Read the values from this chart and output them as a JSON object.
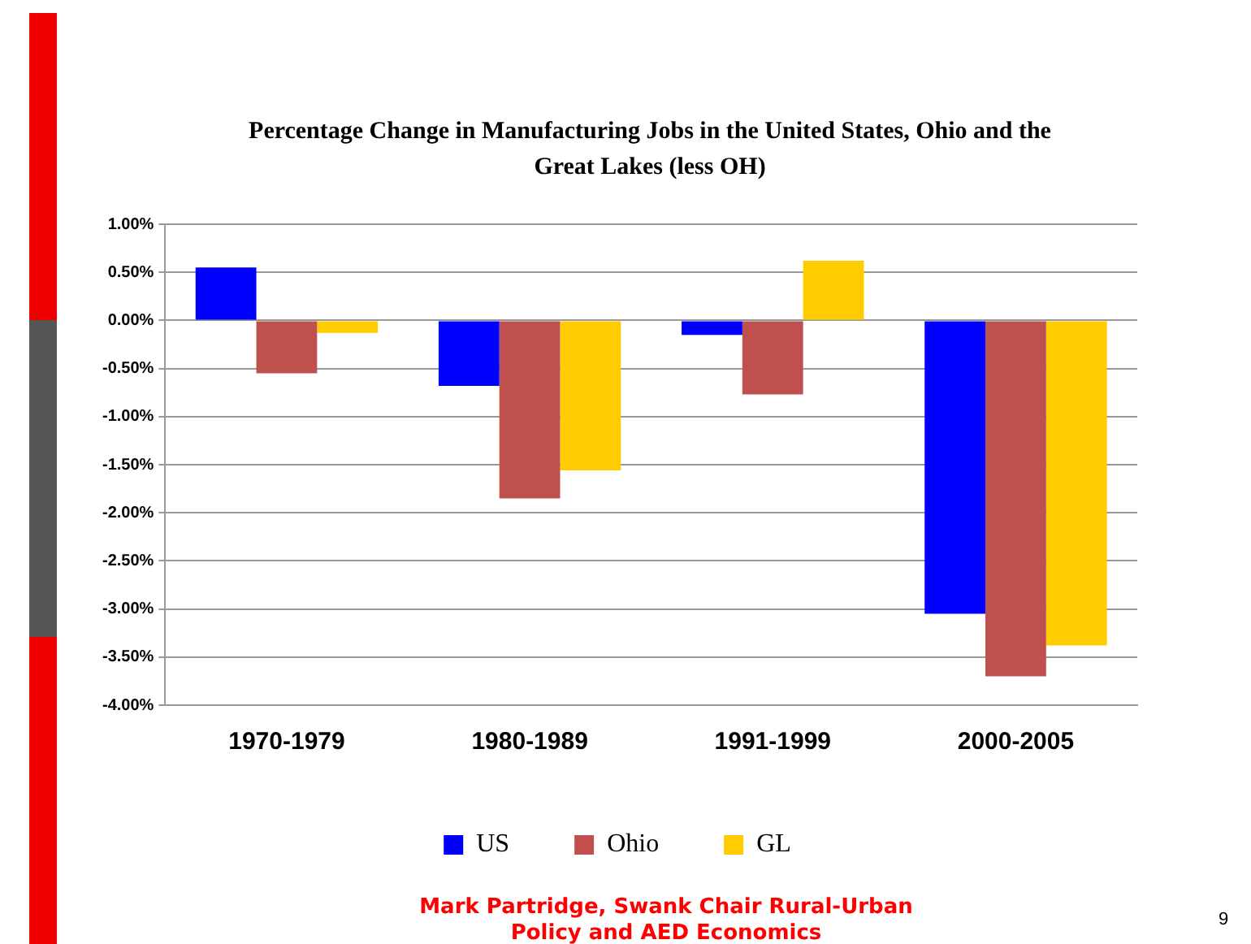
{
  "chart_data": {
    "type": "bar",
    "title": "Percentage Change in Manufacturing Jobs in the United States, Ohio and the Great Lakes (less OH)",
    "categories": [
      "1970-1979",
      "1980-1989",
      "1991-1999",
      "2000-2005"
    ],
    "series": [
      {
        "name": "US",
        "color": "#0000ff",
        "values": [
          0.55,
          -0.68,
          -0.15,
          -3.05
        ]
      },
      {
        "name": "Ohio",
        "color": "#c0504d",
        "values": [
          -0.55,
          -1.85,
          -0.77,
          -3.7
        ]
      },
      {
        "name": "GL",
        "color": "#ffcc00",
        "values": [
          -0.13,
          -1.56,
          0.62,
          -3.38
        ]
      }
    ],
    "ylim": [
      -4,
      1
    ],
    "yticks": [
      {
        "value": 1,
        "label": "1.00%"
      },
      {
        "value": 0.5,
        "label": "0.50%"
      },
      {
        "value": 0,
        "label": "0.00%"
      },
      {
        "value": -0.5,
        "label": "-0.50%"
      },
      {
        "value": -1,
        "label": "-1.00%"
      },
      {
        "value": -1.5,
        "label": "-1.50%"
      },
      {
        "value": -2,
        "label": "-2.00%"
      },
      {
        "value": -2.5,
        "label": "-2.50%"
      },
      {
        "value": -3,
        "label": "-3.00%"
      },
      {
        "value": -3.5,
        "label": "-3.50%"
      },
      {
        "value": -4,
        "label": "-4.00%"
      }
    ],
    "grid": "y",
    "legend": "bottom",
    "annotations": [
      "Mark Partridge, Swank Chair Rural-Urban Policy and AED Economics",
      "9"
    ]
  }
}
